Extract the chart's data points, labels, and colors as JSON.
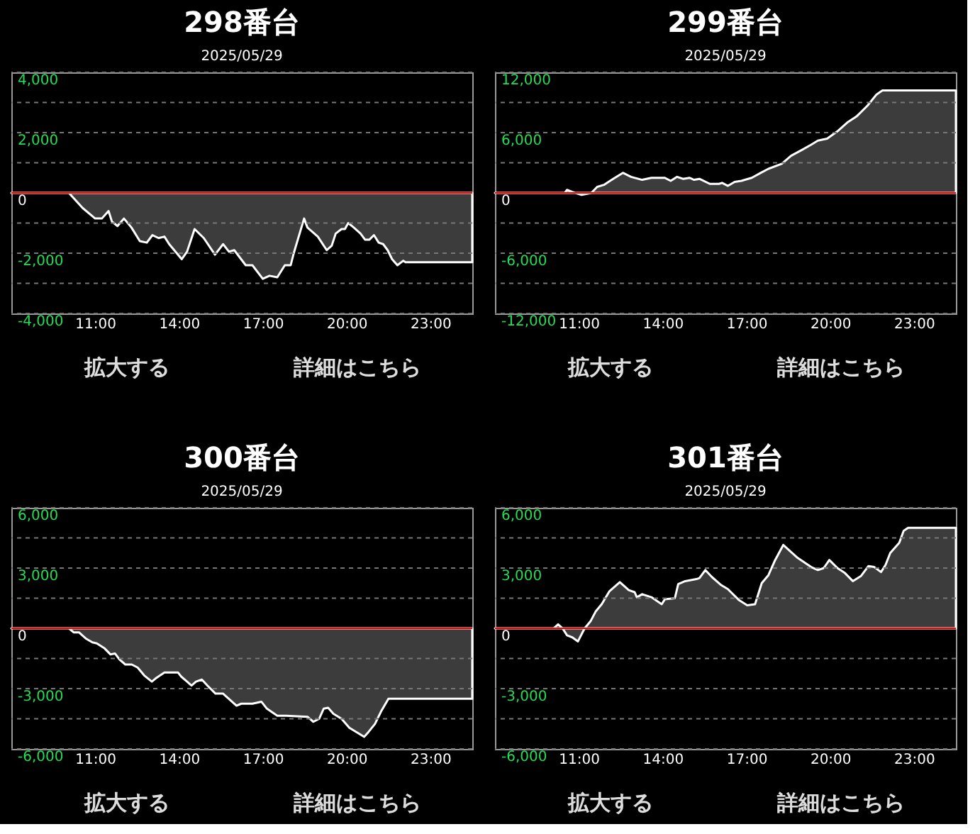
{
  "chart_data": [
    {
      "type": "area",
      "title": "298番台",
      "subtitle": "2025/05/29",
      "annotations": [
        "拡大する",
        "詳細はこちら"
      ],
      "grid": "y",
      "legend": false,
      "xlim": [
        8,
        24.5
      ],
      "xticks": [
        {
          "value": 11,
          "label": "11:00"
        },
        {
          "value": 14,
          "label": "14:00"
        },
        {
          "value": 17,
          "label": "17:00"
        },
        {
          "value": 20,
          "label": "20:00"
        },
        {
          "value": 23,
          "label": "23:00"
        }
      ],
      "ylim": [
        -4000,
        4000
      ],
      "yticks": [
        {
          "value": -4000,
          "label": "-4,000"
        },
        {
          "value": -3000,
          "label": null
        },
        {
          "value": -2000,
          "label": "-2,000"
        },
        {
          "value": -1000,
          "label": null
        },
        0,
        {
          "value": 1000,
          "label": null
        },
        {
          "value": 2000,
          "label": "2,000"
        },
        {
          "value": 3000,
          "label": null
        },
        {
          "value": 4000,
          "label": "4,000"
        }
      ],
      "ref_lines": [
        {
          "axis": "y",
          "value": 0,
          "color": "#ff0000"
        }
      ],
      "series": [
        {
          "color": "#ffffff",
          "x": [
            8.0,
            10.06,
            10.55,
            11.0,
            11.24,
            11.48,
            11.6,
            11.8,
            12.03,
            12.3,
            12.6,
            12.85,
            13.05,
            13.27,
            13.48,
            13.65,
            14.1,
            14.29,
            14.56,
            14.89,
            15.29,
            15.58,
            15.79,
            15.98,
            16.39,
            16.63,
            17.0,
            17.24,
            17.52,
            17.79,
            18.0,
            18.11,
            18.48,
            18.6,
            18.97,
            19.29,
            19.47,
            19.61,
            19.82,
            19.94,
            20.06,
            20.26,
            20.5,
            20.66,
            20.82,
            20.98,
            21.15,
            21.31,
            21.47,
            21.63,
            21.82,
            22.03,
            22.11,
            24.5
          ],
          "values": [
            0,
            0,
            -500,
            -850,
            -850,
            -600,
            -950,
            -1100,
            -850,
            -1150,
            -1600,
            -1650,
            -1400,
            -1500,
            -1450,
            -1700,
            -2200,
            -1950,
            -1200,
            -1500,
            -2050,
            -1700,
            -1950,
            -1900,
            -2400,
            -2400,
            -2850,
            -2750,
            -2800,
            -2400,
            -2400,
            -2000,
            -850,
            -1150,
            -1450,
            -1900,
            -1750,
            -1350,
            -1200,
            -1200,
            -1000,
            -1150,
            -1350,
            -1550,
            -1550,
            -1400,
            -1650,
            -1700,
            -1900,
            -2200,
            -2400,
            -2250,
            -2300,
            -2300
          ]
        }
      ]
    },
    {
      "type": "area",
      "title": "299番台",
      "subtitle": "2025/05/29",
      "annotations": [
        "拡大する",
        "詳細はこちら"
      ],
      "grid": "y",
      "legend": false,
      "xlim": [
        8,
        24.5
      ],
      "xticks": [
        {
          "value": 11,
          "label": "11:00"
        },
        {
          "value": 14,
          "label": "14:00"
        },
        {
          "value": 17,
          "label": "17:00"
        },
        {
          "value": 20,
          "label": "20:00"
        },
        {
          "value": 23,
          "label": "23:00"
        }
      ],
      "ylim": [
        -12000,
        12000
      ],
      "yticks": [
        {
          "value": -12000,
          "label": "-12,000"
        },
        {
          "value": -9000,
          "label": null
        },
        {
          "value": -6000,
          "label": "-6,000"
        },
        {
          "value": -3000,
          "label": null
        },
        0,
        {
          "value": 3000,
          "label": null
        },
        {
          "value": 6000,
          "label": "6,000"
        },
        {
          "value": 9000,
          "label": null
        },
        {
          "value": 12000,
          "label": "12,000"
        }
      ],
      "ref_lines": [
        {
          "axis": "y",
          "value": 0,
          "color": "#ff0000"
        }
      ],
      "series": [
        {
          "color": "#ffffff",
          "x": [
            8.0,
            10.5,
            10.58,
            10.77,
            11.1,
            11.45,
            11.66,
            11.9,
            12.23,
            12.58,
            12.87,
            13.27,
            13.6,
            14.08,
            14.29,
            14.52,
            14.73,
            14.97,
            15.13,
            15.32,
            15.69,
            16.02,
            16.13,
            16.34,
            16.58,
            16.82,
            17.19,
            17.52,
            17.79,
            18.27,
            18.6,
            19.0,
            19.32,
            19.56,
            19.89,
            20.29,
            20.61,
            20.94,
            21.34,
            21.66,
            21.87,
            24.5
          ],
          "values": [
            0,
            0,
            300,
            100,
            -200,
            0,
            600,
            800,
            1400,
            2000,
            1600,
            1300,
            1500,
            1500,
            1200,
            1600,
            1400,
            1500,
            1300,
            1400,
            900,
            900,
            1000,
            700,
            1100,
            1200,
            1500,
            2000,
            2400,
            2900,
            3700,
            4300,
            4800,
            5200,
            5400,
            6200,
            7000,
            7600,
            8700,
            9800,
            10200,
            10200
          ]
        }
      ]
    },
    {
      "type": "area",
      "title": "300番台",
      "subtitle": "2025/05/29",
      "annotations": [
        "拡大する",
        "詳細はこちら"
      ],
      "grid": "y",
      "legend": false,
      "xlim": [
        8,
        24.5
      ],
      "xticks": [
        {
          "value": 11,
          "label": "11:00"
        },
        {
          "value": 14,
          "label": "14:00"
        },
        {
          "value": 17,
          "label": "17:00"
        },
        {
          "value": 20,
          "label": "20:00"
        },
        {
          "value": 23,
          "label": "23:00"
        }
      ],
      "ylim": [
        -6000,
        6000
      ],
      "yticks": [
        {
          "value": -6000,
          "label": "-6,000"
        },
        {
          "value": -4500,
          "label": null
        },
        {
          "value": -3000,
          "label": "-3,000"
        },
        {
          "value": -1500,
          "label": null
        },
        0,
        {
          "value": 1500,
          "label": null
        },
        {
          "value": 3000,
          "label": "3,000"
        },
        {
          "value": 4500,
          "label": null
        },
        {
          "value": 6000,
          "label": "6,000"
        }
      ],
      "ref_lines": [
        {
          "axis": "y",
          "value": 0,
          "color": "#ff0000"
        }
      ],
      "series": [
        {
          "color": "#ffffff",
          "x": [
            8.0,
            10.06,
            10.23,
            10.42,
            10.66,
            10.9,
            11.06,
            11.34,
            11.55,
            11.71,
            11.87,
            12.08,
            12.31,
            12.52,
            12.76,
            13.03,
            13.16,
            13.48,
            13.97,
            14.08,
            14.29,
            14.45,
            14.61,
            14.82,
            15.02,
            15.31,
            15.58,
            16.06,
            16.23,
            16.63,
            16.95,
            17.15,
            17.52,
            17.84,
            18.6,
            18.81,
            19.02,
            19.18,
            19.34,
            19.53,
            19.82,
            20.1,
            20.34,
            20.63,
            20.79,
            21.02,
            21.23,
            21.5,
            24.5
          ],
          "values": [
            0,
            0,
            -200,
            -200,
            -500,
            -700,
            -750,
            -1000,
            -1300,
            -1250,
            -1550,
            -1800,
            -1800,
            -1950,
            -2350,
            -2650,
            -2500,
            -2200,
            -2200,
            -2400,
            -2650,
            -2850,
            -2650,
            -2550,
            -2850,
            -3250,
            -3250,
            -3850,
            -3750,
            -3750,
            -3650,
            -4000,
            -4350,
            -4350,
            -4400,
            -4650,
            -4500,
            -4000,
            -3950,
            -4250,
            -4500,
            -4950,
            -5150,
            -5400,
            -5150,
            -4750,
            -4150,
            -3500,
            -3500
          ]
        }
      ]
    },
    {
      "type": "area",
      "title": "301番台",
      "subtitle": "2025/05/29",
      "annotations": [
        "拡大する",
        "詳細はこちら"
      ],
      "grid": "y",
      "legend": false,
      "xlim": [
        8,
        24.5
      ],
      "xticks": [
        {
          "value": 11,
          "label": "11:00"
        },
        {
          "value": 14,
          "label": "14:00"
        },
        {
          "value": 17,
          "label": "17:00"
        },
        {
          "value": 20,
          "label": "20:00"
        },
        {
          "value": 23,
          "label": "23:00"
        }
      ],
      "ylim": [
        -6000,
        6000
      ],
      "yticks": [
        {
          "value": -6000,
          "label": "-6,000"
        },
        {
          "value": -4500,
          "label": null
        },
        {
          "value": -3000,
          "label": "-3,000"
        },
        {
          "value": -1500,
          "label": null
        },
        0,
        {
          "value": 1500,
          "label": null
        },
        {
          "value": 3000,
          "label": "3,000"
        },
        {
          "value": 4500,
          "label": null
        },
        {
          "value": 6000,
          "label": "6,000"
        }
      ],
      "ref_lines": [
        {
          "axis": "y",
          "value": 0,
          "color": "#ff0000"
        }
      ],
      "series": [
        {
          "color": "#ffffff",
          "x": [
            8.0,
            10.1,
            10.26,
            10.42,
            10.58,
            10.77,
            10.97,
            11.21,
            11.42,
            11.61,
            11.82,
            12.1,
            12.47,
            12.79,
            13.0,
            13.08,
            13.27,
            13.6,
            13.97,
            14.08,
            14.44,
            14.56,
            14.81,
            15.21,
            15.32,
            15.53,
            15.77,
            16.1,
            16.34,
            16.74,
            17.03,
            17.31,
            17.55,
            17.79,
            18.03,
            18.32,
            18.6,
            18.84,
            19.32,
            19.56,
            19.77,
            19.97,
            20.26,
            20.53,
            20.81,
            21.1,
            21.37,
            21.58,
            21.82,
            21.98,
            22.15,
            22.47,
            22.63,
            22.79,
            24.5
          ],
          "values": [
            0,
            0,
            200,
            0,
            -350,
            -450,
            -650,
            0,
            350,
            850,
            1200,
            1850,
            2300,
            1900,
            1800,
            1550,
            1700,
            1550,
            1200,
            1450,
            1500,
            2200,
            2350,
            2450,
            2500,
            2900,
            2550,
            2150,
            1950,
            1400,
            1150,
            1200,
            2250,
            2650,
            3400,
            4150,
            3800,
            3500,
            3050,
            2900,
            3000,
            3400,
            3000,
            2750,
            2350,
            2600,
            3100,
            3050,
            2800,
            3150,
            3750,
            4250,
            4850,
            5000,
            5000
          ]
        }
      ]
    }
  ]
}
